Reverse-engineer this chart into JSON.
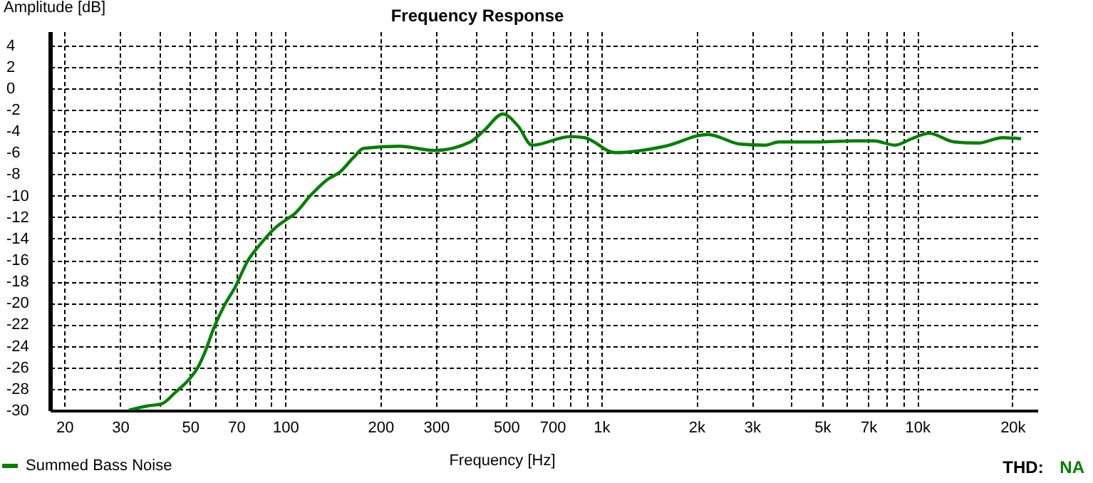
{
  "chart_data": {
    "type": "line",
    "title": "Frequency Response",
    "xlabel": "Frequency [Hz]",
    "ylabel": "Amplitude [dB]",
    "log": "x",
    "grid": true,
    "legend": "bottom left",
    "line_style": "solid",
    "marker": "none",
    "xlim": [
      18,
      24000
    ],
    "ylim": [
      -30,
      5.3
    ],
    "xticks": [
      20,
      30,
      {
        "value": 40,
        "label": null
      },
      50,
      {
        "value": 60,
        "label": null
      },
      70,
      {
        "value": 80,
        "label": null
      },
      {
        "value": 90,
        "label": null
      },
      100,
      200,
      300,
      {
        "value": 400,
        "label": null
      },
      500,
      {
        "value": 600,
        "label": null
      },
      700,
      {
        "value": 800,
        "label": null
      },
      {
        "value": 900,
        "label": null
      },
      {
        "value": 1000,
        "label": "1k"
      },
      {
        "value": 2000,
        "label": "2k"
      },
      {
        "value": 3000,
        "label": "3k"
      },
      {
        "value": 4000,
        "label": null
      },
      {
        "value": 5000,
        "label": "5k"
      },
      {
        "value": 6000,
        "label": null
      },
      {
        "value": 7000,
        "label": "7k"
      },
      {
        "value": 8000,
        "label": null
      },
      {
        "value": 9000,
        "label": null
      },
      {
        "value": 10000,
        "label": "10k"
      },
      {
        "value": 20000,
        "label": "20k"
      }
    ],
    "yticks": [
      -30,
      -28,
      -26,
      -24,
      -22,
      -20,
      -18,
      -16,
      -14,
      -12,
      -10,
      -8,
      -6,
      -4,
      -2,
      0,
      2,
      4
    ],
    "annotations": [
      "THD: NA"
    ],
    "series": [
      {
        "name": "Summed Bass Noise",
        "color": "#008000",
        "x": [
          32,
          34,
          36.5,
          40.6,
          45,
          50,
          52.7,
          55.5,
          59.5,
          64,
          69.5,
          76,
          83,
          93,
          100,
          107,
          121,
          136,
          149,
          165,
          177,
          230,
          297,
          385,
          427,
          488,
          545,
          604,
          798,
          885,
          1107,
          1593,
          2176,
          2750,
          3300,
          3650,
          4800,
          6350,
          7300,
          8500,
          9600,
          10900,
          13100,
          15600,
          18600,
          21300
        ],
        "values": [
          -30,
          -29.8,
          -29.6,
          -29.4,
          -28.3,
          -27,
          -26.1,
          -24.7,
          -22.3,
          -20.3,
          -18.5,
          -16.1,
          -14.6,
          -13,
          -12.3,
          -11.7,
          -9.9,
          -8.5,
          -7.8,
          -6.4,
          -5.6,
          -5.4,
          -5.8,
          -5,
          -3.9,
          -2.4,
          -3.5,
          -5.3,
          -4.5,
          -4.6,
          -6,
          -5.4,
          -4.3,
          -5.2,
          -5.3,
          -5,
          -5,
          -4.9,
          -4.9,
          -5.3,
          -4.7,
          -4.2,
          -5,
          -5.1,
          -4.6,
          -4.7
        ]
      }
    ]
  }
}
